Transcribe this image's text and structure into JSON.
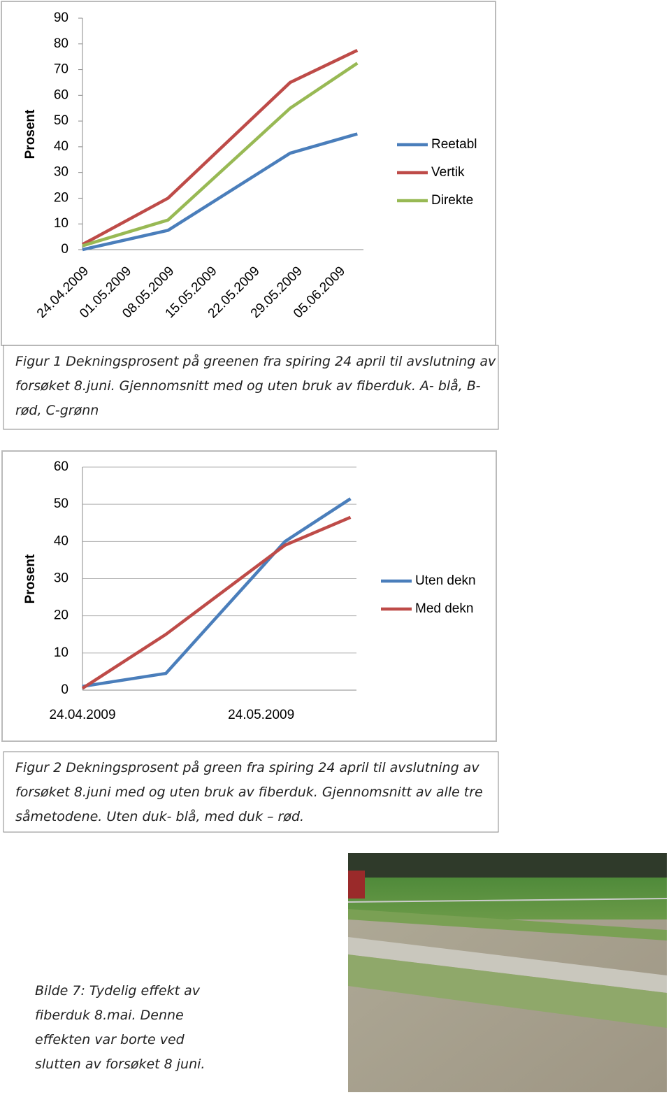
{
  "chart_data": [
    {
      "type": "line",
      "y_label": "Prosent",
      "x": [
        "24.04.2009",
        "08.05.2009",
        "28.05.2009",
        "08.06.2009"
      ],
      "xlim": [
        "24.04.2009",
        "09.06.2009"
      ],
      "xticks": [
        "24.04.2009",
        "01.05.2009",
        "08.05.2009",
        "15.05.2009",
        "22.05.2009",
        "29.05.2009",
        "05.06.2009"
      ],
      "ylim": [
        0,
        90
      ],
      "yticks": [
        0,
        10,
        20,
        30,
        40,
        50,
        60,
        70,
        80,
        90
      ],
      "grid": false,
      "legend": "right",
      "series": [
        {
          "name": "Reetabl",
          "color": "#4a7ebb",
          "values": [
            0,
            7.5,
            37.5,
            45
          ]
        },
        {
          "name": "Vertik",
          "color": "#be4b48",
          "values": [
            2,
            20,
            65,
            77.5
          ]
        },
        {
          "name": "Direkte",
          "color": "#98b954",
          "values": [
            1.5,
            11.5,
            55,
            72.5
          ]
        }
      ]
    },
    {
      "type": "line",
      "y_label": "Prosent",
      "x": [
        "24.04.2009",
        "08.05.2009",
        "28.05.2009",
        "08.06.2009"
      ],
      "xlim": [
        "24.04.2009",
        "09.06.2009"
      ],
      "xticks": [
        "24.04.2009",
        "24.05.2009"
      ],
      "ylim": [
        0,
        60
      ],
      "yticks": [
        0,
        10,
        20,
        30,
        40,
        50,
        60
      ],
      "grid": true,
      "legend": "right",
      "series": [
        {
          "name": "Uten dekn",
          "color": "#4a7ebb",
          "values": [
            1,
            4.5,
            40,
            51.5
          ]
        },
        {
          "name": "Med dekn",
          "color": "#be4b48",
          "values": [
            0.5,
            15,
            39,
            46.5
          ]
        }
      ]
    }
  ],
  "captions": [
    "Figur 1 Dekningsprosent på greenen fra spiring 24 april til avslutning av forsøket 8.juni. Gjennomsnitt med og uten bruk av fiberduk. A- blå, B-rød, C-grønn",
    "Figur 2 Dekningsprosent på green fra spiring 24 april til avslutning av forsøket 8.juni med og uten bruk av fiberduk. Gjennomsnitt av alle tre såmetodene. Uten duk- blå, med duk – rød."
  ],
  "photo_caption": "Bilde 7: Tydelig effekt av fiberduk 8.mai. Denne effekten var borte ved slutten av forsøket 8 juni."
}
